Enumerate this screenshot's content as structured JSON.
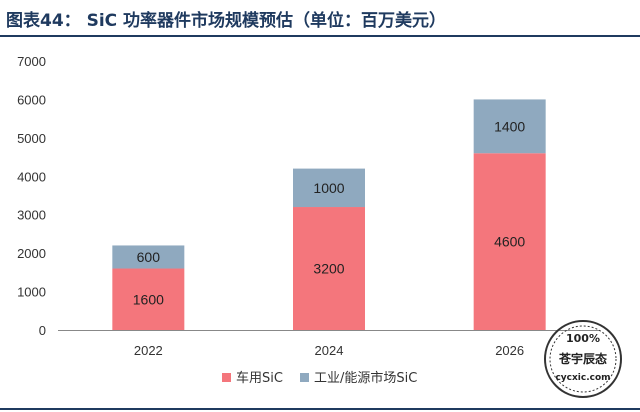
{
  "title": "图表44：  SiC 功率器件市场规模预估（单位：百万美元）",
  "colors": {
    "vehicle": "#f4767c",
    "industrial": "#8fa9bf",
    "title": "#1f3a5f",
    "axis": "#555555"
  },
  "watermark": {
    "line1": "100%",
    "line2": "苍宇辰态",
    "line3": "cycxic.com"
  },
  "chart_data": {
    "type": "bar",
    "stacked": true,
    "categories": [
      "2022",
      "2024",
      "2026"
    ],
    "series": [
      {
        "name": "车用SiC",
        "values": [
          1600,
          3200,
          4600
        ]
      },
      {
        "name": "工业/能源市场SiC",
        "values": [
          600,
          1000,
          1400
        ]
      }
    ],
    "ylim": [
      0,
      7000
    ],
    "yticks": [
      0,
      1000,
      2000,
      3000,
      4000,
      5000,
      6000,
      7000
    ],
    "legend_position": "bottom-center",
    "grid": false,
    "xlabel": "",
    "ylabel": ""
  }
}
